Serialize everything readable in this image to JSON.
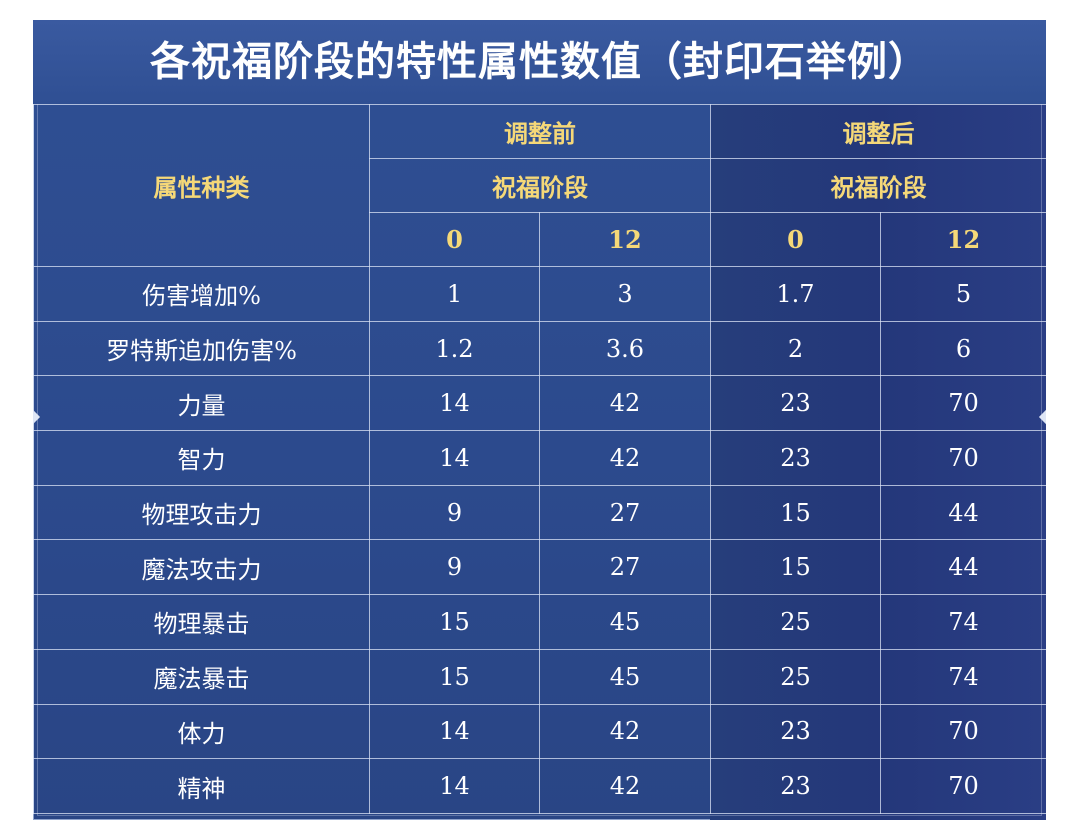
{
  "title": "各祝福阶段的特性属性数值（封印石举例）",
  "header": {
    "row_header": "属性种类",
    "before_label": "调整前",
    "after_label": "调整后",
    "stage_label_before": "祝福阶段",
    "stage_label_after": "祝福阶段",
    "stages": [
      "0",
      "12",
      "0",
      "12"
    ]
  },
  "rows": [
    {
      "name": "伤害增加%",
      "values": [
        "1",
        "3",
        "1.7",
        "5"
      ]
    },
    {
      "name": "罗特斯追加伤害%",
      "values": [
        "1.2",
        "3.6",
        "2",
        "6"
      ]
    },
    {
      "name": "力量",
      "values": [
        "14",
        "42",
        "23",
        "70"
      ]
    },
    {
      "name": "智力",
      "values": [
        "14",
        "42",
        "23",
        "70"
      ]
    },
    {
      "name": "物理攻击力",
      "values": [
        "9",
        "27",
        "15",
        "44"
      ]
    },
    {
      "name": "魔法攻击力",
      "values": [
        "9",
        "27",
        "15",
        "44"
      ]
    },
    {
      "name": "物理暴击",
      "values": [
        "15",
        "45",
        "25",
        "74"
      ]
    },
    {
      "name": "魔法暴击",
      "values": [
        "15",
        "45",
        "25",
        "74"
      ]
    },
    {
      "name": "体力",
      "values": [
        "14",
        "42",
        "23",
        "70"
      ]
    },
    {
      "name": "精神",
      "values": [
        "14",
        "42",
        "23",
        "70"
      ]
    }
  ],
  "colors": {
    "background": "#2f4f93",
    "after_shade": "#24377a",
    "header_gold": "#f5d878",
    "text": "#ffffff",
    "grid": "#dce4f5"
  }
}
